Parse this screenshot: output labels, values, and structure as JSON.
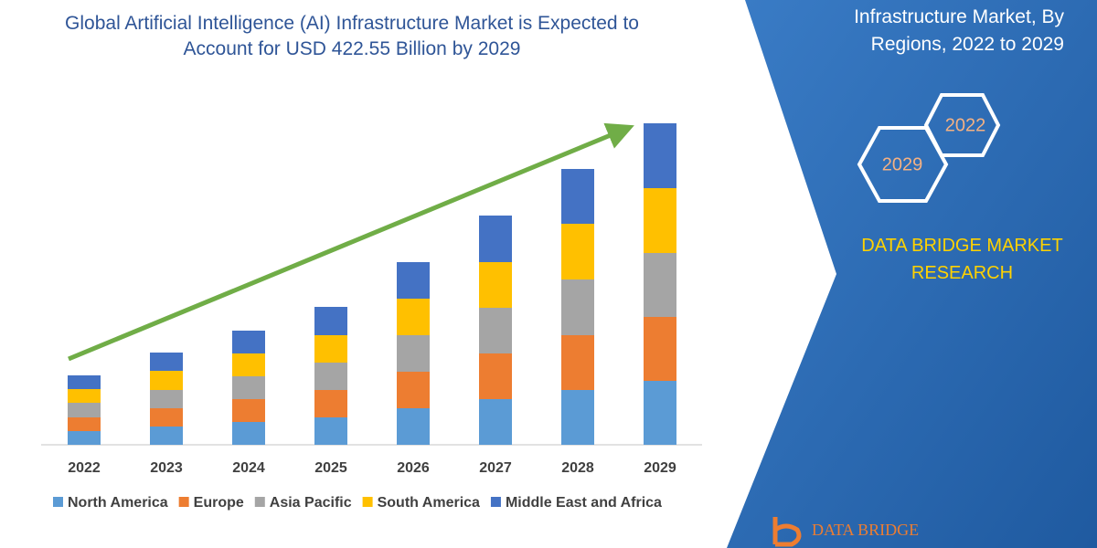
{
  "chart_data": {
    "type": "stacked-bar",
    "title": "Global Artificial Intelligence (AI) Infrastructure Market is Expected to Account for USD 422.55 Billion by 2029",
    "categories": [
      "2022",
      "2023",
      "2024",
      "2025",
      "2026",
      "2027",
      "2028",
      "2029"
    ],
    "series": [
      {
        "name": "North America",
        "color": "#5b9bd5",
        "values": [
          15,
          20,
          25,
          30,
          40,
          50,
          60,
          70
        ]
      },
      {
        "name": "Europe",
        "color": "#ed7d31",
        "values": [
          15,
          20,
          25,
          30,
          40,
          50,
          60,
          70
        ]
      },
      {
        "name": "Asia Pacific",
        "color": "#a5a5a5",
        "values": [
          16,
          20,
          25,
          30,
          40,
          50,
          61,
          70
        ]
      },
      {
        "name": "South America",
        "color": "#ffc000",
        "values": [
          15,
          21,
          25,
          30,
          40,
          50,
          61,
          71
        ]
      },
      {
        "name": "Middle East and Africa",
        "color": "#4472c4",
        "values": [
          15,
          20,
          25,
          31,
          40,
          51,
          60,
          71
        ]
      }
    ],
    "legend": "bottom"
  },
  "side_panel": {
    "heading": [
      "Infrastructure Market, By",
      "Regions, 2022 to 2029"
    ],
    "hexagons": [
      "2022",
      "2029"
    ],
    "brand": [
      "DATA BRIDGE MARKET",
      "RESEARCH"
    ],
    "logo": "DATA BRIDGE"
  }
}
